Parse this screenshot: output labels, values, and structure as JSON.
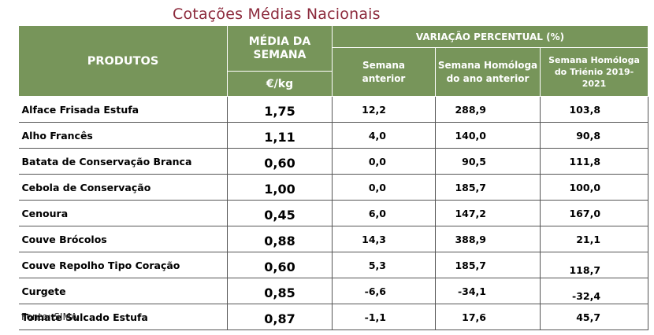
{
  "title": "Cotações Médias Nacionais",
  "header": {
    "produtos": "PRODUTOS",
    "media_line1": "MÉDIA DA",
    "media_line2": "SEMANA",
    "unit": "€/kg",
    "variacao": "VARIAÇÃO PERCENTUAL (%)",
    "sub1_line1": "Semana",
    "sub1_line2": "anterior",
    "sub2_line1": "Semana Homóloga",
    "sub2_line2": "do ano anterior",
    "sub3_line1": "Semana Homóloga",
    "sub3_line2": "do Triénio 2019-",
    "sub3_line3": "2021"
  },
  "rows": [
    {
      "produto": "Alface Frisada Estufa",
      "media": "1,75",
      "semana_anterior": "12,2",
      "homologa_ano": "288,9",
      "homologa_trienio": "103,8"
    },
    {
      "produto": "Alho Francês",
      "media": "1,11",
      "semana_anterior": "4,0",
      "homologa_ano": "140,0",
      "homologa_trienio": "90,8"
    },
    {
      "produto": "Batata de Conservação Branca",
      "media": "0,60",
      "semana_anterior": "0,0",
      "homologa_ano": "90,5",
      "homologa_trienio": "111,8"
    },
    {
      "produto": "Cebola de Conservação",
      "media": "1,00",
      "semana_anterior": "0,0",
      "homologa_ano": "185,7",
      "homologa_trienio": "100,0"
    },
    {
      "produto": "Cenoura",
      "media": "0,45",
      "semana_anterior": "6,0",
      "homologa_ano": "147,2",
      "homologa_trienio": "167,0"
    },
    {
      "produto": "Couve Brócolos",
      "media": "0,88",
      "semana_anterior": "14,3",
      "homologa_ano": "388,9",
      "homologa_trienio": "21,1"
    },
    {
      "produto": "Couve Repolho Tipo Coração",
      "media": "0,60",
      "semana_anterior": "5,3",
      "homologa_ano": "185,7",
      "homologa_trienio": "118,7"
    },
    {
      "produto": "Curgete",
      "media": "0,85",
      "semana_anterior": "-6,6",
      "homologa_ano": "-34,1",
      "homologa_trienio": "-32,4"
    },
    {
      "produto": "Tomate Sulcado Estufa",
      "media": "0,87",
      "semana_anterior": "-1,1",
      "homologa_ano": "17,6",
      "homologa_trienio": "45,7"
    }
  ],
  "source": "Fonte: SIMA"
}
